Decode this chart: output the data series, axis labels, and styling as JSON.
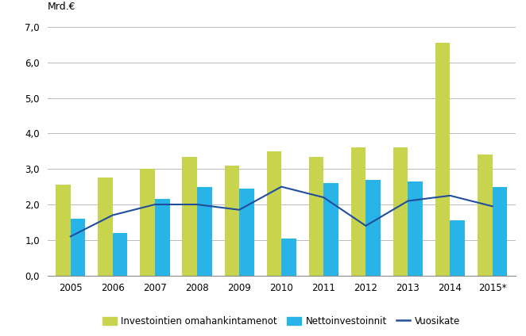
{
  "years": [
    2005,
    2006,
    2007,
    2008,
    2009,
    2010,
    2011,
    2012,
    2013,
    2014,
    2015
  ],
  "year_labels": [
    "2005",
    "2006",
    "2007",
    "2008",
    "2009",
    "2010",
    "2011",
    "2012",
    "2013",
    "2014",
    "2015*"
  ],
  "omahankintamenot": [
    2.55,
    2.75,
    3.0,
    3.35,
    3.1,
    3.5,
    3.35,
    3.6,
    3.6,
    6.55,
    3.4
  ],
  "nettoinvestoinnit": [
    1.6,
    1.2,
    2.15,
    2.5,
    2.45,
    1.05,
    2.6,
    2.7,
    2.65,
    1.55,
    2.5
  ],
  "vuosikate": [
    1.1,
    1.7,
    2.0,
    2.0,
    1.85,
    2.5,
    2.2,
    1.4,
    2.1,
    2.25,
    1.95
  ],
  "bar_color_green": "#c8d44e",
  "bar_color_blue": "#29b4e8",
  "line_color": "#1f4e9c",
  "ylim": [
    0,
    7.0
  ],
  "yticks": [
    0.0,
    1.0,
    2.0,
    3.0,
    4.0,
    5.0,
    6.0,
    7.0
  ],
  "ytick_labels": [
    "0,0",
    "1,0",
    "2,0",
    "3,0",
    "4,0",
    "5,0",
    "6,0",
    "7,0"
  ],
  "ylabel": "Mrd.€",
  "legend_omahankinta": "Investointien omahankintamenot",
  "legend_netto": "Nettoinvestoinnit",
  "legend_vuosi": "Vuosikate",
  "background_color": "#ffffff",
  "grid_color": "#b0b0b0"
}
